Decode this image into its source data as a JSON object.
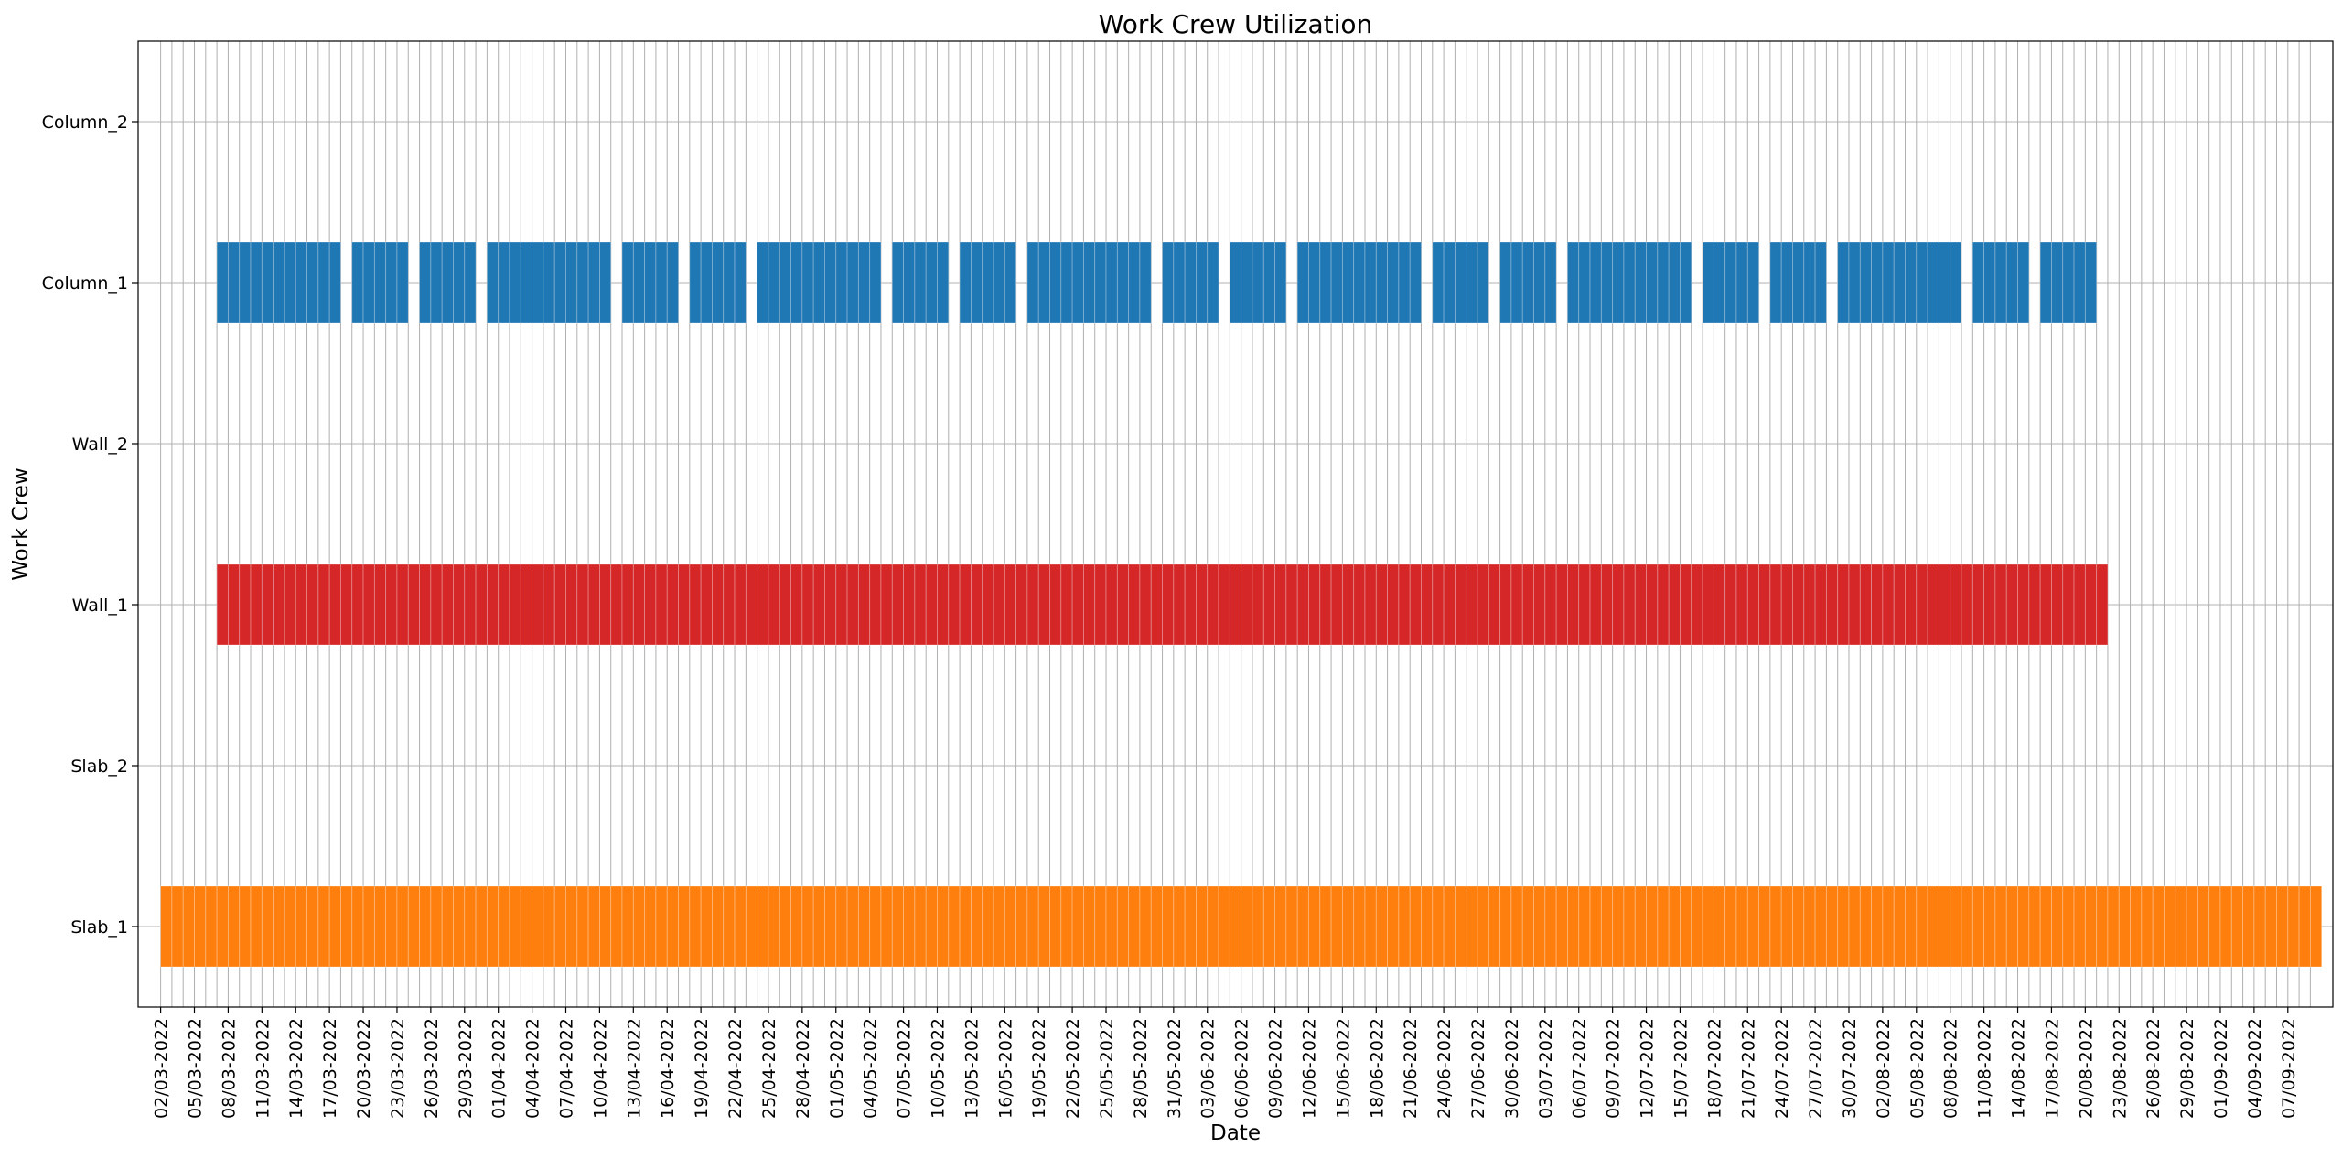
{
  "chart_data": {
    "type": "gantt",
    "title": "Work Crew Utilization",
    "xlabel": "Date",
    "ylabel": "Work Crew",
    "x_range": [
      "02/03-2022",
      "09/09-2022"
    ],
    "x_tick_labels": [
      "02/03-2022",
      "05/03-2022",
      "08/03-2022",
      "11/03-2022",
      "14/03-2022",
      "17/03-2022",
      "20/03-2022",
      "23/03-2022",
      "26/03-2022",
      "29/03-2022",
      "01/04-2022",
      "04/04-2022",
      "07/04-2022",
      "10/04-2022",
      "13/04-2022",
      "16/04-2022",
      "19/04-2022",
      "22/04-2022",
      "25/04-2022",
      "28/04-2022",
      "01/05-2022",
      "04/05-2022",
      "07/05-2022",
      "10/05-2022",
      "13/05-2022",
      "16/05-2022",
      "19/05-2022",
      "22/05-2022",
      "25/05-2022",
      "28/05-2022",
      "31/05-2022",
      "03/06-2022",
      "06/06-2022",
      "09/06-2022",
      "12/06-2022",
      "15/06-2022",
      "18/06-2022",
      "21/06-2022",
      "24/06-2022",
      "27/06-2022",
      "30/06-2022",
      "03/07-2022",
      "06/07-2022",
      "09/07-2022",
      "12/07-2022",
      "15/07-2022",
      "18/07-2022",
      "21/07-2022",
      "24/07-2022",
      "27/07-2022",
      "30/07-2022",
      "02/08-2022",
      "05/08-2022",
      "08/08-2022",
      "11/08-2022",
      "14/08-2022",
      "17/08-2022",
      "20/08-2022",
      "23/08-2022",
      "26/08-2022",
      "29/08-2022",
      "01/09-2022",
      "04/09-2022",
      "07/09-2022"
    ],
    "categories": [
      "Column_2",
      "Column_1",
      "Wall_2",
      "Wall_1",
      "Slab_2",
      "Slab_1"
    ],
    "grid": true,
    "series": [
      {
        "crew": "Slab_1",
        "color": "#ff7f0e",
        "intervals": [
          [
            "02/03-2022",
            "09/09-2022"
          ]
        ]
      },
      {
        "crew": "Wall_1",
        "color": "#d62728",
        "intervals": [
          [
            "07/03-2022",
            "21/08-2022"
          ]
        ]
      },
      {
        "crew": "Column_1",
        "color": "#1f77b4",
        "intervals": [
          [
            "07/03-2022",
            "17/03-2022"
          ],
          [
            "19/03-2022",
            "23/03-2022"
          ],
          [
            "25/03-2022",
            "29/03-2022"
          ],
          [
            "31/03-2022",
            "10/04-2022"
          ],
          [
            "12/04-2022",
            "16/04-2022"
          ],
          [
            "18/04-2022",
            "22/04-2022"
          ],
          [
            "24/04-2022",
            "04/05-2022"
          ],
          [
            "06/05-2022",
            "10/05-2022"
          ],
          [
            "12/05-2022",
            "16/05-2022"
          ],
          [
            "18/05-2022",
            "28/05-2022"
          ],
          [
            "30/05-2022",
            "03/06-2022"
          ],
          [
            "05/06-2022",
            "09/06-2022"
          ],
          [
            "11/06-2022",
            "21/06-2022"
          ],
          [
            "23/06-2022",
            "27/06-2022"
          ],
          [
            "29/06-2022",
            "03/07-2022"
          ],
          [
            "05/07-2022",
            "15/07-2022"
          ],
          [
            "17/07-2022",
            "21/07-2022"
          ],
          [
            "23/07-2022",
            "27/07-2022"
          ],
          [
            "29/07-2022",
            "08/08-2022"
          ],
          [
            "10/08-2022",
            "14/08-2022"
          ],
          [
            "16/08-2022",
            "20/08-2022"
          ]
        ]
      }
    ]
  }
}
